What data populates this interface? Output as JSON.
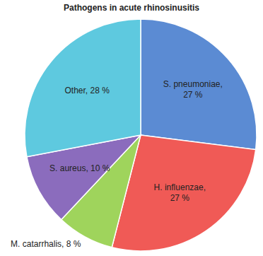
{
  "chart_data": {
    "type": "pie",
    "title": "Pathogens in acute rhinosinusitis",
    "categories": [
      "S. pneumoniae",
      "H. influenzae",
      "M. catarrhalis",
      "S. aureus",
      "Other"
    ],
    "values": [
      27,
      27,
      8,
      10,
      28
    ],
    "value_labels": [
      "S. pneumoniae, 27 %",
      "H. influenzae, 27 %",
      "M. catarrhalis, 8 %",
      "S. aureus, 10 %",
      "Other, 28 %"
    ],
    "colors": [
      "#5b8bd3",
      "#f05a56",
      "#9fd45c",
      "#8b6cbd",
      "#5ec9df"
    ],
    "data_labels": true
  }
}
